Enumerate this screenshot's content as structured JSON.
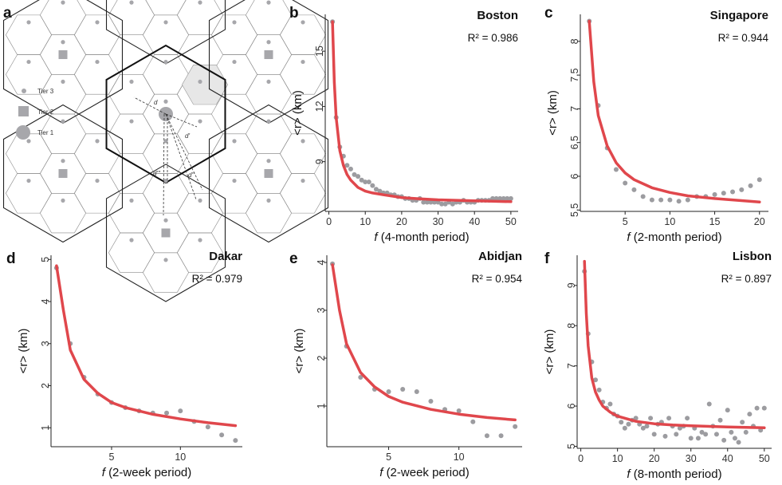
{
  "panel_a": {
    "label": "a",
    "legend": [
      "Tier 3",
      "Tier 2",
      "Tier 1"
    ],
    "distance_labels": [
      "d",
      "d'",
      "d''",
      "d'''"
    ]
  },
  "chart_data": [
    {
      "panel": "b",
      "type": "scatter",
      "title": "Boston",
      "r2": "R² = 0.986",
      "xlabel_var": "f",
      "xlabel": "(4-month period)",
      "ylabel": "<r> (km)",
      "xlim": [
        -1,
        52
      ],
      "ylim": [
        6.3,
        17.0
      ],
      "xticks": [
        0,
        10,
        20,
        30,
        40,
        50
      ],
      "yticks": [
        9,
        12,
        15
      ],
      "points": [
        [
          1,
          16.6
        ],
        [
          2,
          11.4
        ],
        [
          3,
          9.8
        ],
        [
          4,
          9.3
        ],
        [
          5,
          8.8
        ],
        [
          6,
          8.6
        ],
        [
          7,
          8.3
        ],
        [
          8,
          8.2
        ],
        [
          9,
          8.0
        ],
        [
          10,
          7.9
        ],
        [
          11,
          7.9
        ],
        [
          12,
          7.7
        ],
        [
          13,
          7.5
        ],
        [
          14,
          7.4
        ],
        [
          15,
          7.3
        ],
        [
          16,
          7.3
        ],
        [
          17,
          7.2
        ],
        [
          18,
          7.2
        ],
        [
          19,
          7.1
        ],
        [
          20,
          7.1
        ],
        [
          21,
          7.0
        ],
        [
          22,
          7.0
        ],
        [
          23,
          6.9
        ],
        [
          24,
          6.9
        ],
        [
          25,
          7.0
        ],
        [
          26,
          6.8
        ],
        [
          27,
          6.8
        ],
        [
          28,
          6.8
        ],
        [
          29,
          6.8
        ],
        [
          30,
          6.8
        ],
        [
          31,
          6.7
        ],
        [
          32,
          6.7
        ],
        [
          33,
          6.8
        ],
        [
          34,
          6.7
        ],
        [
          35,
          6.8
        ],
        [
          36,
          6.8
        ],
        [
          37,
          6.9
        ],
        [
          38,
          6.8
        ],
        [
          39,
          6.8
        ],
        [
          40,
          6.8
        ],
        [
          41,
          6.9
        ],
        [
          42,
          6.9
        ],
        [
          43,
          6.9
        ],
        [
          44,
          6.9
        ],
        [
          45,
          7.0
        ],
        [
          46,
          7.0
        ],
        [
          47,
          7.0
        ],
        [
          48,
          7.0
        ],
        [
          49,
          7.0
        ],
        [
          50,
          7.0
        ]
      ],
      "fit": [
        [
          1,
          16.6
        ],
        [
          1.5,
          13.3
        ],
        [
          2,
          11.4
        ],
        [
          3,
          9.6
        ],
        [
          4,
          8.8
        ],
        [
          5,
          8.3
        ],
        [
          6,
          8.0
        ],
        [
          8,
          7.6
        ],
        [
          10,
          7.4
        ],
        [
          12,
          7.3
        ],
        [
          15,
          7.2
        ],
        [
          20,
          7.05
        ],
        [
          25,
          6.98
        ],
        [
          30,
          6.93
        ],
        [
          35,
          6.9
        ],
        [
          40,
          6.87
        ],
        [
          45,
          6.85
        ],
        [
          50,
          6.83
        ]
      ]
    },
    {
      "panel": "c",
      "type": "scatter",
      "title": "Singapore",
      "r2": "R² = 0.944",
      "xlabel_var": "f",
      "xlabel": "(2-month period)",
      "ylabel": "<r> (km)",
      "xlim": [
        0,
        21
      ],
      "ylim": [
        5.48,
        8.4
      ],
      "xticks": [
        5,
        10,
        15,
        20
      ],
      "yticks": [
        5.5,
        6.0,
        6.5,
        7.0,
        7.5,
        8.0
      ],
      "points": [
        [
          1,
          8.3
        ],
        [
          2,
          7.05
        ],
        [
          3,
          6.42
        ],
        [
          4,
          6.1
        ],
        [
          5,
          5.9
        ],
        [
          6,
          5.8
        ],
        [
          7,
          5.7
        ],
        [
          8,
          5.65
        ],
        [
          9,
          5.65
        ],
        [
          10,
          5.65
        ],
        [
          11,
          5.63
        ],
        [
          12,
          5.65
        ],
        [
          13,
          5.7
        ],
        [
          14,
          5.7
        ],
        [
          15,
          5.73
        ],
        [
          16,
          5.75
        ],
        [
          17,
          5.77
        ],
        [
          18,
          5.8
        ],
        [
          19,
          5.86
        ],
        [
          20,
          5.95
        ]
      ],
      "fit": [
        [
          1,
          8.3
        ],
        [
          1.5,
          7.4
        ],
        [
          2,
          6.9
        ],
        [
          3,
          6.45
        ],
        [
          4,
          6.2
        ],
        [
          5,
          6.05
        ],
        [
          6,
          5.95
        ],
        [
          8,
          5.83
        ],
        [
          10,
          5.76
        ],
        [
          12,
          5.71
        ],
        [
          15,
          5.67
        ],
        [
          20,
          5.62
        ]
      ]
    },
    {
      "panel": "d",
      "type": "scatter",
      "title": "Dakar",
      "r2": "R² = 0.979",
      "xlabel_var": "f",
      "xlabel": "(2-week period)",
      "ylabel": "<r> (km)",
      "xlim": [
        0.6,
        14.5
      ],
      "ylim": [
        0.55,
        5.1
      ],
      "xticks": [
        5,
        10
      ],
      "yticks": [
        1,
        2,
        3,
        4,
        5
      ],
      "points": [
        [
          1,
          4.8
        ],
        [
          2,
          3.0
        ],
        [
          3,
          2.2
        ],
        [
          4,
          1.8
        ],
        [
          5,
          1.6
        ],
        [
          6,
          1.48
        ],
        [
          7,
          1.4
        ],
        [
          8,
          1.35
        ],
        [
          9,
          1.35
        ],
        [
          10,
          1.4
        ],
        [
          11,
          1.15
        ],
        [
          12,
          1.02
        ],
        [
          13,
          0.83
        ],
        [
          14,
          0.7
        ]
      ],
      "fit": [
        [
          1,
          4.85
        ],
        [
          1.5,
          3.8
        ],
        [
          2,
          2.85
        ],
        [
          3,
          2.15
        ],
        [
          4,
          1.82
        ],
        [
          5,
          1.6
        ],
        [
          6,
          1.48
        ],
        [
          8,
          1.32
        ],
        [
          10,
          1.21
        ],
        [
          12,
          1.12
        ],
        [
          14,
          1.05
        ]
      ]
    },
    {
      "panel": "e",
      "type": "scatter",
      "title": "Abidjan",
      "r2": "R² = 0.954",
      "xlabel_var": "f",
      "xlabel": "(2-week period)",
      "ylabel": "<r> (km)",
      "xlim": [
        0.6,
        14.5
      ],
      "ylim": [
        0.15,
        4.15
      ],
      "xticks": [
        5,
        10
      ],
      "yticks": [
        1,
        2,
        3,
        4
      ],
      "points": [
        [
          1,
          3.97
        ],
        [
          2,
          2.25
        ],
        [
          3,
          1.6
        ],
        [
          4,
          1.35
        ],
        [
          5,
          1.3
        ],
        [
          6,
          1.35
        ],
        [
          7,
          1.3
        ],
        [
          8,
          1.1
        ],
        [
          9,
          0.93
        ],
        [
          10,
          0.9
        ],
        [
          11,
          0.67
        ],
        [
          12,
          0.38
        ],
        [
          13,
          0.38
        ],
        [
          14,
          0.57
        ]
      ],
      "fit": [
        [
          1,
          3.95
        ],
        [
          1.5,
          3.0
        ],
        [
          2,
          2.3
        ],
        [
          3,
          1.7
        ],
        [
          4,
          1.4
        ],
        [
          5,
          1.2
        ],
        [
          6,
          1.08
        ],
        [
          8,
          0.93
        ],
        [
          10,
          0.83
        ],
        [
          12,
          0.76
        ],
        [
          14,
          0.71
        ]
      ]
    },
    {
      "panel": "f",
      "type": "scatter",
      "title": "Lisbon",
      "r2": "R² = 0.897",
      "xlabel_var": "f",
      "xlabel": "(8-month period)",
      "ylabel": "<r> (km)",
      "xlim": [
        -1,
        52
      ],
      "ylim": [
        4.95,
        9.75
      ],
      "xticks": [
        0,
        10,
        20,
        30,
        40,
        50
      ],
      "yticks": [
        5,
        6,
        7,
        8,
        9
      ],
      "points": [
        [
          1,
          9.35
        ],
        [
          2,
          7.8
        ],
        [
          3,
          7.1
        ],
        [
          4,
          6.65
        ],
        [
          5,
          6.4
        ],
        [
          6,
          6.1
        ],
        [
          7,
          5.95
        ],
        [
          8,
          6.05
        ],
        [
          9,
          5.8
        ],
        [
          10,
          5.75
        ],
        [
          11,
          5.6
        ],
        [
          12,
          5.45
        ],
        [
          13,
          5.55
        ],
        [
          14,
          5.65
        ],
        [
          15,
          5.7
        ],
        [
          16,
          5.55
        ],
        [
          17,
          5.45
        ],
        [
          18,
          5.5
        ],
        [
          19,
          5.7
        ],
        [
          20,
          5.3
        ],
        [
          21,
          5.55
        ],
        [
          22,
          5.6
        ],
        [
          23,
          5.25
        ],
        [
          24,
          5.7
        ],
        [
          25,
          5.5
        ],
        [
          26,
          5.3
        ],
        [
          27,
          5.45
        ],
        [
          28,
          5.5
        ],
        [
          29,
          5.7
        ],
        [
          30,
          5.2
        ],
        [
          31,
          5.45
        ],
        [
          32,
          5.2
        ],
        [
          33,
          5.35
        ],
        [
          34,
          5.3
        ],
        [
          35,
          6.05
        ],
        [
          36,
          5.5
        ],
        [
          37,
          5.3
        ],
        [
          38,
          5.65
        ],
        [
          39,
          5.15
        ],
        [
          40,
          5.9
        ],
        [
          41,
          5.35
        ],
        [
          42,
          5.2
        ],
        [
          43,
          5.1
        ],
        [
          44,
          5.6
        ],
        [
          45,
          5.35
        ],
        [
          46,
          5.8
        ],
        [
          47,
          5.5
        ],
        [
          48,
          5.95
        ],
        [
          49,
          5.4
        ],
        [
          50,
          5.95
        ]
      ],
      "fit": [
        [
          1,
          9.6
        ],
        [
          1.5,
          8.3
        ],
        [
          2,
          7.5
        ],
        [
          3,
          6.7
        ],
        [
          4,
          6.35
        ],
        [
          5,
          6.15
        ],
        [
          6,
          6.0
        ],
        [
          8,
          5.85
        ],
        [
          10,
          5.75
        ],
        [
          15,
          5.62
        ],
        [
          20,
          5.56
        ],
        [
          25,
          5.53
        ],
        [
          30,
          5.51
        ],
        [
          40,
          5.48
        ],
        [
          50,
          5.46
        ]
      ]
    }
  ]
}
